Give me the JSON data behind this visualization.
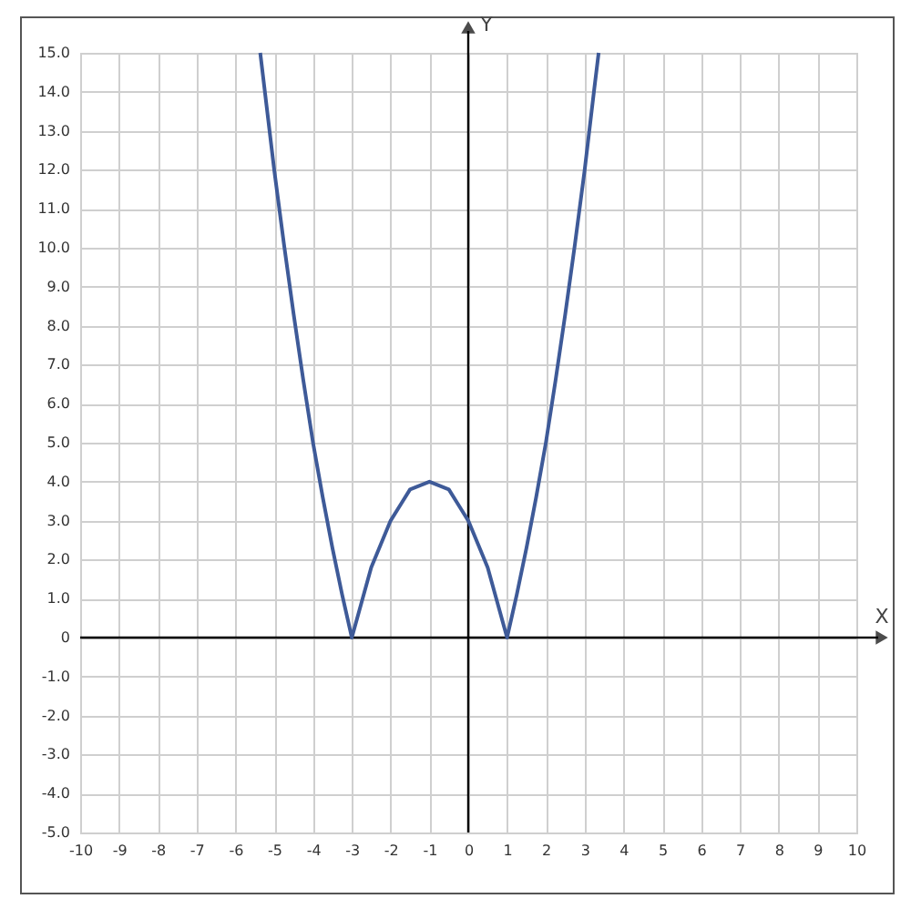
{
  "chart_data": {
    "type": "line",
    "xlabel": "X",
    "ylabel": "Y",
    "series": [
      {
        "color": "#3e5a98",
        "x": [
          -5.36,
          -5,
          -4.75,
          -4.5,
          -4.25,
          -4,
          -3.75,
          -3.5,
          -3.25,
          -3,
          -2.75,
          -2.5,
          -2.25,
          -2,
          -1.75,
          -1.5,
          -1.25,
          -1,
          -0.75,
          -0.5,
          -0.25,
          0,
          0.25,
          0.5,
          0.75,
          1,
          1.25,
          1.5,
          1.75,
          2,
          2.25,
          2.5,
          2.75,
          3,
          3.25,
          3.36
        ],
        "values": [
          15,
          12,
          10.1,
          8.3,
          6.6,
          5,
          3.6,
          2.3,
          1.1,
          0,
          0.9,
          1.8,
          2.4,
          3,
          3.4,
          3.8,
          3.9,
          4,
          3.9,
          3.8,
          3.4,
          3,
          2.4,
          1.8,
          0.9,
          0,
          1.1,
          2.3,
          3.6,
          5,
          6.6,
          8.3,
          10.1,
          12,
          14.1,
          15
        ]
      }
    ],
    "xlim": [
      -10,
      10
    ],
    "xticks": [
      -10,
      -9,
      -8,
      -7,
      -6,
      -5,
      -4,
      -3,
      -2,
      -1,
      0,
      1,
      2,
      3,
      4,
      5,
      6,
      7,
      8,
      9,
      10
    ],
    "ylim": [
      -5,
      15
    ],
    "yticks": [
      {
        "value": -5,
        "label": "-5.0"
      },
      {
        "value": -4,
        "label": "-4.0"
      },
      {
        "value": -3,
        "label": "-3.0"
      },
      {
        "value": -2,
        "label": "-2.0"
      },
      {
        "value": -1,
        "label": "-1.0"
      },
      0,
      {
        "value": 1,
        "label": "1.0"
      },
      {
        "value": 2,
        "label": "2.0"
      },
      {
        "value": 3,
        "label": "3.0"
      },
      {
        "value": 4,
        "label": "4.0"
      },
      {
        "value": 5,
        "label": "5.0"
      },
      {
        "value": 6,
        "label": "6.0"
      },
      {
        "value": 7,
        "label": "7.0"
      },
      {
        "value": 8,
        "label": "8.0"
      },
      {
        "value": 9,
        "label": "9.0"
      },
      {
        "value": 10,
        "label": "10.0"
      },
      {
        "value": 11,
        "label": "11.0"
      },
      {
        "value": 12,
        "label": "12.0"
      },
      {
        "value": 13,
        "label": "13.0"
      },
      {
        "value": 14,
        "label": "14.0"
      },
      {
        "value": 15,
        "label": "15.0"
      }
    ],
    "grid": true,
    "marker": "none",
    "line_style": "solid"
  }
}
